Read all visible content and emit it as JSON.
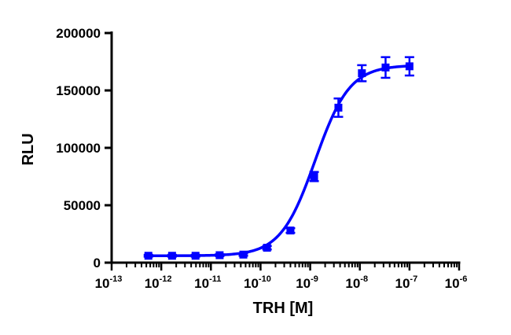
{
  "chart_data": {
    "type": "scatter",
    "xlabel": "TRH [M]",
    "ylabel": "RLU",
    "x_scale": "log",
    "xlim": [
      1e-13,
      1e-06
    ],
    "ylim": [
      0,
      200000
    ],
    "y_ticks": [
      0,
      50000,
      100000,
      150000,
      200000
    ],
    "y_tick_labels": [
      "0",
      "50000",
      "100000",
      "150000",
      "200000"
    ],
    "x_tick_exponents": [
      "-13",
      "-12",
      "-11",
      "-10",
      "-9",
      "-8",
      "-7",
      "-6"
    ],
    "x_tick_base": "10",
    "grid": false,
    "color": "#0000ff",
    "series": [
      {
        "x": [
          5.5e-13,
          1.65e-12,
          4.9e-12,
          1.5e-11,
          4.5e-11,
          1.35e-10,
          4e-10,
          1.2e-09,
          3.7e-09,
          1.1e-08,
          3.3e-08,
          1e-07
        ],
        "y": [
          6000,
          6000,
          6000,
          6500,
          7000,
          13000,
          28000,
          75000,
          135000,
          165000,
          170000,
          171000
        ],
        "error": [
          800,
          800,
          800,
          800,
          1000,
          1500,
          2000,
          4000,
          8000,
          7000,
          9000,
          8000
        ]
      }
    ],
    "fit": {
      "bottom": 6000,
      "top": 172000,
      "logEC50": -8.9,
      "hill": 1.25
    }
  }
}
